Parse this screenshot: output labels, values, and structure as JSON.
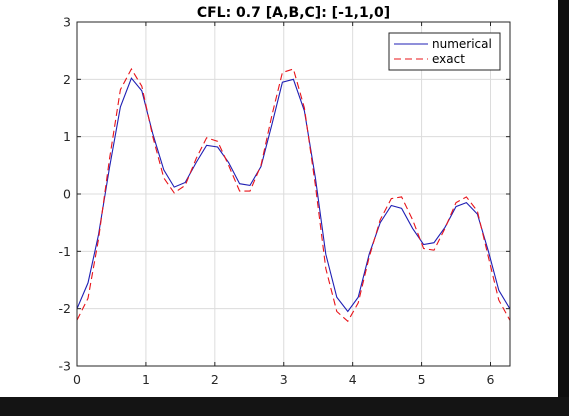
{
  "chart_data": {
    "type": "line",
    "title": "CFL: 0.7   [A,B,C]: [-1,1,0]",
    "xlabel": "",
    "ylabel": "",
    "xlim": [
      0,
      6.283
    ],
    "ylim": [
      -3,
      3
    ],
    "xticks": [
      0,
      1,
      2,
      3,
      4,
      5,
      6
    ],
    "yticks": [
      -3,
      -2,
      -1,
      0,
      1,
      2,
      3
    ],
    "grid": true,
    "legend_position": "top-right",
    "series": [
      {
        "name": "numerical",
        "color": "#1f1fb4",
        "style": "solid",
        "x": [
          0,
          0.16,
          0.31,
          0.47,
          0.63,
          0.79,
          0.94,
          1.1,
          1.26,
          1.41,
          1.57,
          1.73,
          1.88,
          2.04,
          2.2,
          2.36,
          2.51,
          2.67,
          2.83,
          2.98,
          3.14,
          3.3,
          3.46,
          3.61,
          3.77,
          3.93,
          4.08,
          4.24,
          4.4,
          4.56,
          4.71,
          4.87,
          5.03,
          5.18,
          5.34,
          5.5,
          5.65,
          5.81,
          5.97,
          6.12,
          6.28
        ],
        "y": [
          -2.0,
          -1.55,
          -0.72,
          0.45,
          1.52,
          2.02,
          1.8,
          1.05,
          0.42,
          0.12,
          0.2,
          0.55,
          0.85,
          0.82,
          0.55,
          0.18,
          0.15,
          0.48,
          1.22,
          1.95,
          2.0,
          1.45,
          0.28,
          -1.05,
          -1.8,
          -2.05,
          -1.8,
          -1.05,
          -0.5,
          -0.2,
          -0.25,
          -0.6,
          -0.88,
          -0.85,
          -0.58,
          -0.22,
          -0.15,
          -0.35,
          -1.0,
          -1.68,
          -2.0
        ]
      },
      {
        "name": "exact",
        "color": "#e8141a",
        "style": "dashed",
        "x": [
          0,
          0.16,
          0.31,
          0.47,
          0.63,
          0.79,
          0.94,
          1.1,
          1.26,
          1.41,
          1.57,
          1.73,
          1.88,
          2.04,
          2.2,
          2.36,
          2.51,
          2.67,
          2.83,
          2.98,
          3.14,
          3.3,
          3.46,
          3.61,
          3.77,
          3.93,
          4.08,
          4.24,
          4.4,
          4.56,
          4.71,
          4.87,
          5.03,
          5.18,
          5.34,
          5.5,
          5.65,
          5.81,
          5.97,
          6.12,
          6.28
        ],
        "y": [
          -2.2,
          -1.82,
          -0.8,
          0.6,
          1.82,
          2.18,
          1.88,
          1.0,
          0.28,
          0.02,
          0.15,
          0.62,
          0.98,
          0.92,
          0.5,
          0.05,
          0.05,
          0.5,
          1.38,
          2.12,
          2.18,
          1.5,
          0.15,
          -1.3,
          -2.05,
          -2.22,
          -1.9,
          -1.1,
          -0.45,
          -0.08,
          -0.05,
          -0.45,
          -0.95,
          -0.98,
          -0.6,
          -0.15,
          -0.05,
          -0.3,
          -1.1,
          -1.85,
          -2.2
        ]
      }
    ]
  },
  "background": {
    "figure_color": "#ffffff",
    "axes_color": "#ffffff",
    "grid_color": "#dcdcdc",
    "terminal_color": "#161616"
  }
}
